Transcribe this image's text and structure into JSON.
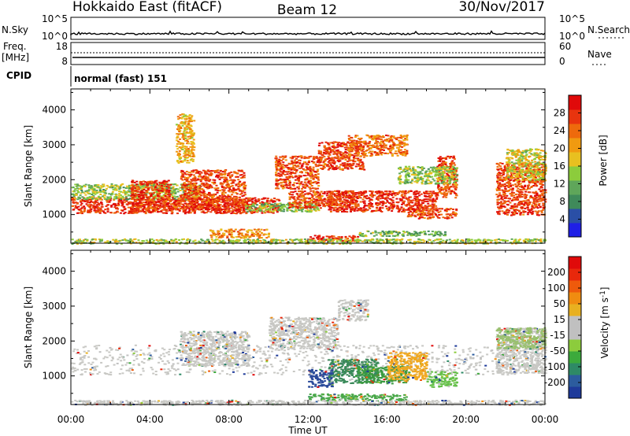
{
  "header": {
    "station": "Hokkaido East (fitACF)",
    "beam": "Beam 12",
    "date": "30/Nov/2017"
  },
  "top_panels": {
    "nsky_label": "N.Sky",
    "nsearch_label": "N.Search",
    "nsky_ticks": [
      "10^5",
      "10^0"
    ],
    "freq_label": "Freq.",
    "freq_unit": "[MHz]",
    "freq_ticks": [
      "18",
      "8"
    ],
    "nave_label": "Nave",
    "nave_ticks": [
      "60",
      "0"
    ],
    "cpid_label": "CPID",
    "cpid_value": "normal (fast) 151"
  },
  "chart_data": [
    {
      "type": "heatmap",
      "name": "power",
      "ylabel": "Slant Range [km]",
      "x_ticks": [
        "00:00",
        "04:00",
        "08:00",
        "12:00",
        "16:00",
        "20:00",
        "00:00"
      ],
      "xlim": [
        0,
        24
      ],
      "y_ticks": [
        1000,
        2000,
        3000,
        4000
      ],
      "ylim": [
        180,
        4600
      ],
      "colorbar": {
        "label": "Power [dB]",
        "ticks": [
          4,
          8,
          12,
          16,
          20,
          24,
          28
        ],
        "vmin": 0,
        "vmax": 32,
        "colors": [
          "#1f1fe6",
          "#2a4fa6",
          "#3f8a5a",
          "#5fa65a",
          "#8ccc3c",
          "#e8c020",
          "#f09a10",
          "#ee6a0c",
          "#e8340e",
          "#e00a0a"
        ]
      },
      "features": [
        {
          "t0": 0.0,
          "t1": 10.5,
          "r0": 1050,
          "r1": 1500,
          "v": 28
        },
        {
          "t0": 0.0,
          "t1": 6.5,
          "r0": 1450,
          "r1": 1900,
          "v": 14
        },
        {
          "t0": 3.0,
          "t1": 5.0,
          "r0": 1100,
          "r1": 2000,
          "v": 27
        },
        {
          "t0": 5.0,
          "t1": 9.0,
          "r0": 1150,
          "r1": 1450,
          "v": 27
        },
        {
          "t0": 5.5,
          "t1": 8.8,
          "r0": 1400,
          "r1": 2300,
          "v": 26
        },
        {
          "t0": 8.8,
          "t1": 12.5,
          "r0": 1100,
          "r1": 1350,
          "v": 13
        },
        {
          "t0": 10.3,
          "t1": 12.5,
          "r0": 1750,
          "r1": 2700,
          "v": 26
        },
        {
          "t0": 11.0,
          "t1": 14.5,
          "r0": 1200,
          "r1": 1700,
          "v": 26
        },
        {
          "t0": 12.5,
          "t1": 14.8,
          "r0": 2300,
          "r1": 3100,
          "v": 27
        },
        {
          "t0": 14.0,
          "t1": 17.0,
          "r0": 2700,
          "r1": 3300,
          "v": 24
        },
        {
          "t0": 13.0,
          "t1": 18.5,
          "r0": 1100,
          "r1": 1700,
          "v": 28
        },
        {
          "t0": 17.0,
          "t1": 19.5,
          "r0": 900,
          "r1": 1200,
          "v": 26
        },
        {
          "t0": 18.5,
          "t1": 19.5,
          "r0": 1500,
          "r1": 2700,
          "v": 27
        },
        {
          "t0": 16.5,
          "t1": 19.5,
          "r0": 1900,
          "r1": 2400,
          "v": 14
        },
        {
          "t0": 21.5,
          "t1": 24.0,
          "r0": 1000,
          "r1": 2500,
          "v": 27
        },
        {
          "t0": 22.0,
          "t1": 24.0,
          "r0": 2000,
          "r1": 2900,
          "v": 17
        },
        {
          "t0": 12.0,
          "t1": 14.5,
          "r0": 250,
          "r1": 420,
          "v": 28
        },
        {
          "t0": 7.0,
          "t1": 10.0,
          "r0": 350,
          "r1": 600,
          "v": 22
        },
        {
          "t0": 14.5,
          "t1": 19.0,
          "r0": 400,
          "r1": 550,
          "v": 12
        },
        {
          "t0": 5.3,
          "t1": 6.2,
          "r0": 2500,
          "r1": 3900,
          "v": 20
        },
        {
          "t0": 0.0,
          "t1": 24.0,
          "r0": 180,
          "r1": 320,
          "v": 15
        }
      ]
    },
    {
      "type": "heatmap",
      "name": "velocity",
      "ylabel": "Slant Range [km]",
      "xlabel": "Time UT",
      "x_ticks": [
        "00:00",
        "04:00",
        "08:00",
        "12:00",
        "16:00",
        "20:00",
        "00:00"
      ],
      "xlim": [
        0,
        24
      ],
      "y_ticks": [
        1000,
        2000,
        3000,
        4000
      ],
      "ylim": [
        180,
        4600
      ],
      "colorbar": {
        "label": "Velocity [m s-1]",
        "ticks": [
          "200",
          "100",
          "50",
          "15",
          "-15",
          "-50",
          "-100",
          "-200"
        ],
        "colors": [
          "#1e3a9a",
          "#2c5c9e",
          "#2e8a66",
          "#3caa3c",
          "#8ccc3c",
          "#c0c0c0",
          "#c0c0c0",
          "#e8b020",
          "#f08c10",
          "#ee5a0c",
          "#e8280c",
          "#e00a0a"
        ]
      },
      "features": [
        {
          "t0": 0.0,
          "t1": 24.0,
          "r0": 1050,
          "r1": 1900,
          "c": "#c8c8c4"
        },
        {
          "t0": 5.5,
          "t1": 9.0,
          "r0": 1300,
          "r1": 2300,
          "c": "#c8c8c4"
        },
        {
          "t0": 10.0,
          "t1": 13.5,
          "r0": 1800,
          "r1": 2700,
          "c": "#c8c8c4"
        },
        {
          "t0": 13.5,
          "t1": 15.0,
          "r0": 2600,
          "r1": 3200,
          "c": "#c8c8c4"
        },
        {
          "t0": 13.0,
          "t1": 15.5,
          "r0": 800,
          "r1": 1500,
          "c": "#3a8a5a"
        },
        {
          "t0": 14.5,
          "t1": 17.0,
          "r0": 800,
          "r1": 1300,
          "c": "#3a9a40"
        },
        {
          "t0": 16.0,
          "t1": 18.0,
          "r0": 900,
          "r1": 1700,
          "c": "#f0a820"
        },
        {
          "t0": 18.0,
          "t1": 19.5,
          "r0": 700,
          "r1": 1150,
          "c": "#66c04a"
        },
        {
          "t0": 12.0,
          "t1": 13.2,
          "r0": 700,
          "r1": 1200,
          "c": "#2a4a9a"
        },
        {
          "t0": 21.5,
          "t1": 24.0,
          "r0": 1100,
          "r1": 2400,
          "c": "#c8c8c4"
        },
        {
          "t0": 21.5,
          "t1": 24.0,
          "r0": 1800,
          "r1": 2400,
          "c": "#9ac070"
        },
        {
          "t0": 12.0,
          "t1": 17.0,
          "r0": 300,
          "r1": 500,
          "c": "#4aa84a"
        },
        {
          "t0": 0.0,
          "t1": 24.0,
          "r0": 180,
          "r1": 320,
          "c": "#c8c8c4"
        }
      ]
    }
  ]
}
